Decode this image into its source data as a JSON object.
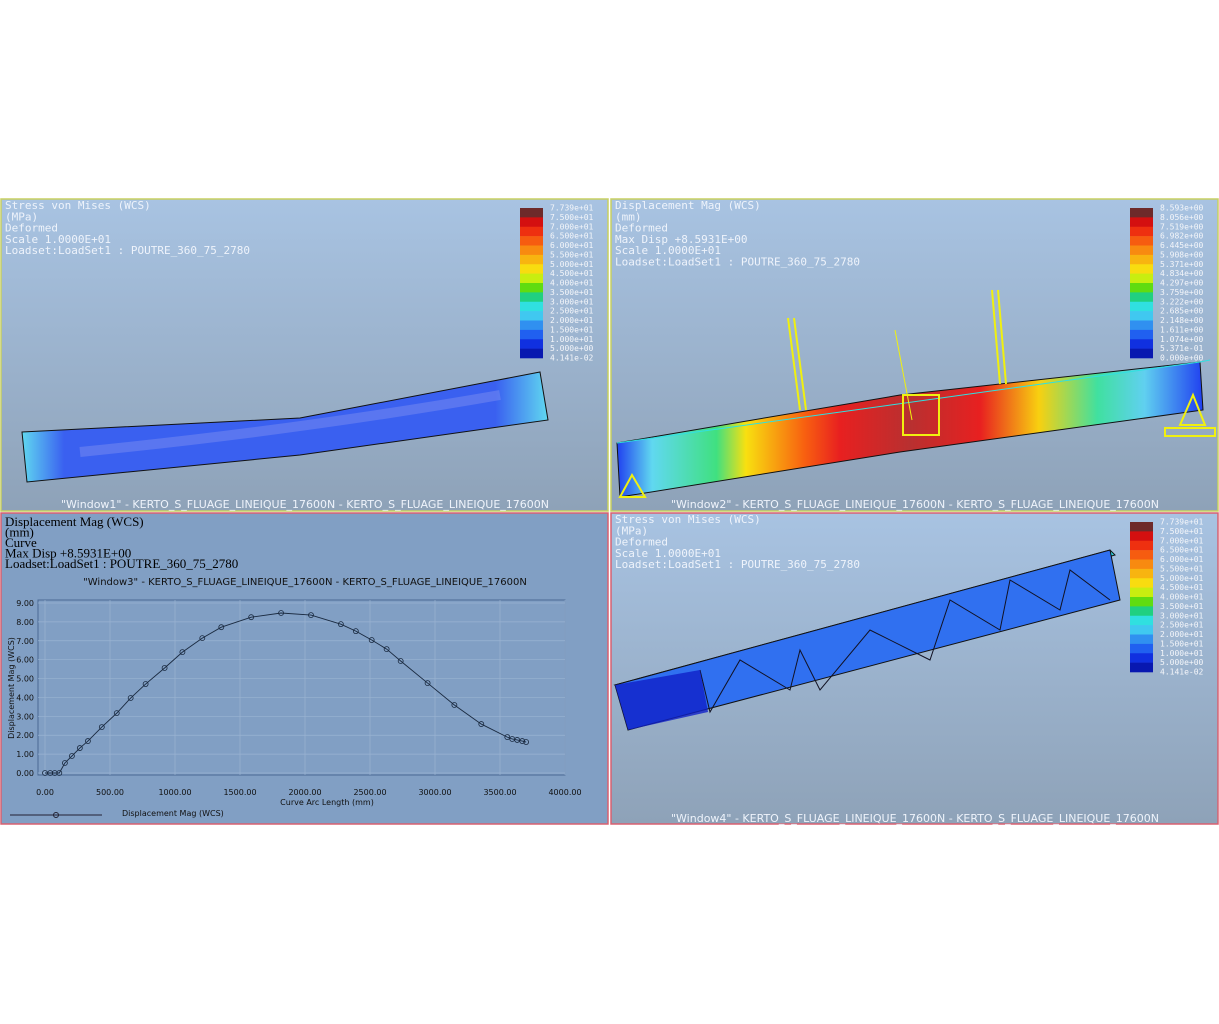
{
  "windows": [
    {
      "header": [
        "Stress von Mises (WCS)",
        "(MPa)",
        "Deformed",
        "Scale  1.0000E+01",
        "Loadset:LoadSet1 :  POUTRE_360_75_2780"
      ],
      "caption": "\"Window1\" - KERTO_S_FLUAGE_LINEIQUE_17600N - KERTO_S_FLUAGE_LINEIQUE_17600N",
      "legend": [
        "7.739e+01",
        "7.500e+01",
        "7.000e+01",
        "6.500e+01",
        "6.000e+01",
        "5.500e+01",
        "5.000e+01",
        "4.500e+01",
        "4.000e+01",
        "3.500e+01",
        "3.000e+01",
        "2.500e+01",
        "2.000e+01",
        "1.500e+01",
        "1.000e+01",
        "5.000e+00",
        "4.141e-02"
      ]
    },
    {
      "header": [
        "Displacement Mag (WCS)",
        "(mm)",
        "Deformed",
        "Max Disp  +8.5931E+00",
        "Scale  1.0000E+01",
        "Loadset:LoadSet1 :  POUTRE_360_75_2780"
      ],
      "caption": "\"Window2\" - KERTO_S_FLUAGE_LINEIQUE_17600N - KERTO_S_FLUAGE_LINEIQUE_17600N",
      "legend": [
        "8.593e+00",
        "8.056e+00",
        "7.519e+00",
        "6.982e+00",
        "6.445e+00",
        "5.908e+00",
        "5.371e+00",
        "4.834e+00",
        "4.297e+00",
        "3.759e+00",
        "3.222e+00",
        "2.685e+00",
        "2.148e+00",
        "1.611e+00",
        "1.074e+00",
        "5.371e-01",
        "0.000e+00"
      ]
    },
    {
      "header": [
        "Displacement Mag (WCS)",
        "(mm)",
        "Curve",
        "Max Disp  +8.5931E+00",
        "Loadset:LoadSet1 : POUTRE_360_75_2780"
      ]
    },
    {
      "header": [
        "Stress von Mises (WCS)",
        "(MPa)",
        "Deformed",
        "Scale  1.0000E+01",
        "Loadset:LoadSet1 :  POUTRE_360_75_2780"
      ],
      "caption": "\"Window4\" - KERTO_S_FLUAGE_LINEIQUE_17600N - KERTO_S_FLUAGE_LINEIQUE_17600N",
      "legend": [
        "7.739e+01",
        "7.500e+01",
        "7.000e+01",
        "6.500e+01",
        "6.000e+01",
        "5.500e+01",
        "5.000e+01",
        "4.500e+01",
        "4.000e+01",
        "3.500e+01",
        "3.000e+01",
        "2.500e+01",
        "2.000e+01",
        "1.500e+01",
        "1.000e+01",
        "5.000e+00",
        "4.141e-02"
      ]
    }
  ],
  "colormap": [
    "#6e2a2a",
    "#d41010",
    "#ee3010",
    "#f65c10",
    "#f88a10",
    "#f8b410",
    "#f8dc10",
    "#c8ee10",
    "#60dc10",
    "#20d080",
    "#30e0e0",
    "#40c8f0",
    "#3090f0",
    "#2060f0",
    "#1030e0",
    "#0818b0"
  ],
  "chart_data": {
    "type": "line",
    "title": "\"Window3\" - KERTO_S_FLUAGE_LINEIQUE_17600N - KERTO_S_FLUAGE_LINEIQUE_17600N",
    "x_label": "Curve Arc Length (mm)",
    "y_label": "Displacement Mag (WCS)",
    "x": [
      0,
      40,
      75,
      110,
      153,
      207,
      268,
      330,
      437,
      552,
      659,
      774,
      920,
      1057,
      1210,
      1356,
      1586,
      1816,
      2046,
      2276,
      2391,
      2513,
      2628,
      2736,
      2943,
      3149,
      3356,
      3556,
      3594,
      3632,
      3671,
      3701
    ],
    "series": [
      {
        "name": "Displacement Mag (WCS)",
        "color": "#1a2a40",
        "values": [
          0,
          0,
          0,
          0,
          0.53,
          0.9,
          1.32,
          1.69,
          2.43,
          3.17,
          3.97,
          4.71,
          5.56,
          6.4,
          7.14,
          7.72,
          8.25,
          8.47,
          8.36,
          7.88,
          7.51,
          7.04,
          6.56,
          5.93,
          4.76,
          3.6,
          2.59,
          1.9,
          1.8,
          1.75,
          1.69,
          1.64
        ]
      }
    ],
    "xlim": [
      0,
      4000
    ],
    "xticks": [
      {
        "value": 0,
        "label": "0.00"
      },
      {
        "value": 500,
        "label": "500.00"
      },
      {
        "value": 1000,
        "label": "1000.00"
      },
      {
        "value": 1500,
        "label": "1500.00"
      },
      {
        "value": 2000,
        "label": "2000.00"
      },
      {
        "value": 2500,
        "label": "2500.00"
      },
      {
        "value": 3000,
        "label": "3000.00"
      },
      {
        "value": 3500,
        "label": "3500.00"
      },
      {
        "value": 4000,
        "label": "4000.00"
      }
    ],
    "ylim": [
      0,
      9
    ],
    "yticks": [
      {
        "value": 0,
        "label": "0.00"
      },
      {
        "value": 1,
        "label": "1.00"
      },
      {
        "value": 2,
        "label": "2.00"
      },
      {
        "value": 3,
        "label": "3.00"
      },
      {
        "value": 4,
        "label": "4.00"
      },
      {
        "value": 5,
        "label": "5.00"
      },
      {
        "value": 6,
        "label": "6.00"
      },
      {
        "value": 7,
        "label": "7.00"
      },
      {
        "value": 8,
        "label": "8.00"
      },
      {
        "value": 9,
        "label": "9.00"
      }
    ],
    "grid": true
  }
}
